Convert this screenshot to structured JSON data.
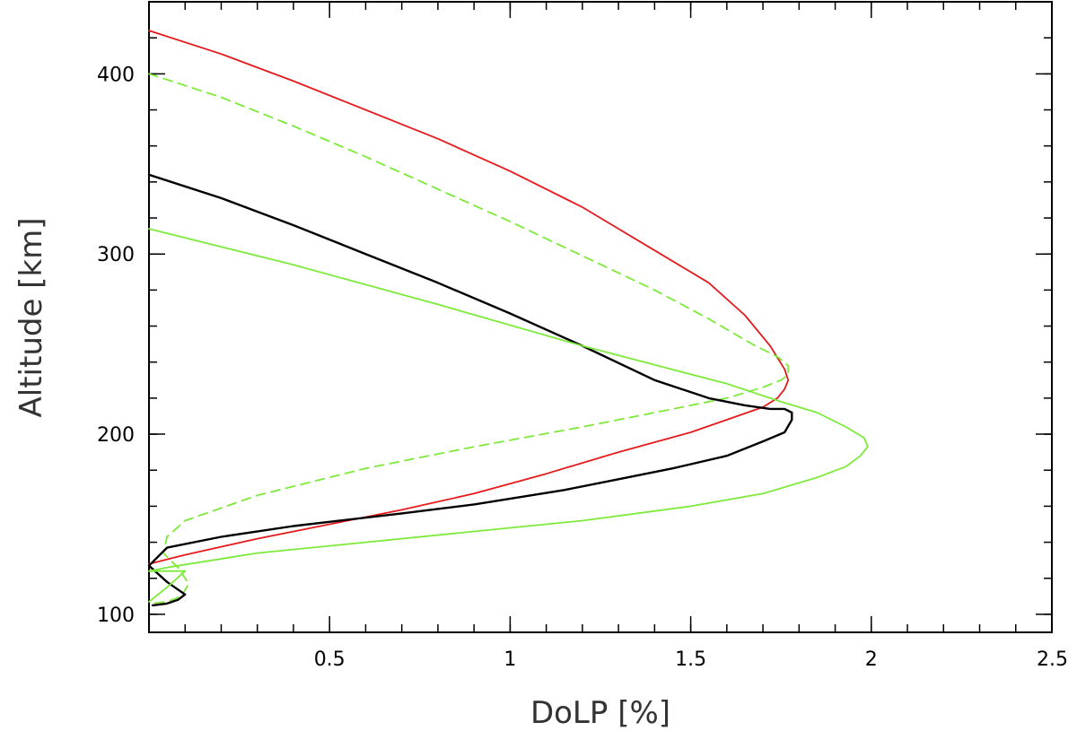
{
  "chart_data": {
    "type": "line",
    "xlabel": "DoLP [%]",
    "ylabel": "Altitude [km]",
    "xlim": [
      0,
      2.5
    ],
    "ylim": [
      90,
      440
    ],
    "x_ticks": [
      {
        "value": 0.5,
        "label": "0.5"
      },
      {
        "value": 1,
        "label": "1"
      },
      {
        "value": 1.5,
        "label": "1.5"
      },
      {
        "value": 2,
        "label": "2"
      },
      {
        "value": 2.5,
        "label": "2.5"
      }
    ],
    "y_ticks": [
      {
        "value": 100,
        "label": "100"
      },
      {
        "value": 200,
        "label": "200"
      },
      {
        "value": 300,
        "label": "300"
      },
      {
        "value": 400,
        "label": "400"
      }
    ],
    "x_minor_step": 0.1,
    "y_minor_step": 20,
    "grid": false,
    "series": [
      {
        "color": "#e41a1c",
        "style": "solid",
        "x": [
          0,
          0.2,
          0.4,
          0.6,
          0.8,
          1.0,
          1.2,
          1.4,
          1.55,
          1.65,
          1.72,
          1.76,
          1.77,
          1.76,
          1.74,
          1.7,
          1.6,
          1.5,
          1.3,
          1.1,
          0.9,
          0.7,
          0.5,
          0.3,
          0.1,
          0
        ],
        "y": [
          424,
          411,
          396,
          380,
          364,
          346,
          326,
          302,
          284,
          266,
          249,
          236,
          230,
          225,
          220,
          215,
          208,
          201,
          190,
          178,
          167,
          158,
          150,
          142,
          133,
          128
        ]
      },
      {
        "color": "#7dea3a",
        "style": "dashed",
        "x": [
          0,
          0.2,
          0.4,
          0.6,
          0.8,
          1.0,
          1.2,
          1.4,
          1.55,
          1.67,
          1.74,
          1.77,
          1.77,
          1.75,
          1.7,
          1.6,
          1.4,
          1.2,
          0.9,
          0.6,
          0.3,
          0.1,
          0.05,
          0.04,
          0.08,
          0.11,
          0.09,
          0.05,
          0
        ],
        "y": [
          400,
          387,
          371,
          354,
          336,
          318,
          299,
          280,
          264,
          250,
          243,
          238,
          233,
          230,
          226,
          220,
          212,
          204,
          193,
          181,
          166,
          152,
          143,
          134,
          126,
          117,
          110,
          107,
          106
        ]
      },
      {
        "color": "#000000",
        "style": "solid",
        "line_width": 2.4,
        "x": [
          0,
          0.2,
          0.4,
          0.6,
          0.8,
          1.0,
          1.2,
          1.4,
          1.55,
          1.65,
          1.72,
          1.76,
          1.78,
          1.78,
          1.76,
          1.7,
          1.6,
          1.45,
          1.3,
          1.15,
          0.9,
          0.7,
          0.4,
          0.2,
          0.05,
          0,
          0.05,
          0.1,
          0.08,
          0.05,
          0.01
        ],
        "y": [
          344,
          331,
          316,
          300,
          284,
          267,
          249,
          230,
          220,
          216,
          214,
          214,
          212,
          208,
          201,
          196,
          188,
          181,
          175,
          169,
          161,
          156,
          149,
          143,
          137,
          127,
          118,
          111,
          108,
          106,
          105
        ]
      },
      {
        "color": "#7dea3a",
        "style": "solid",
        "x": [
          0,
          0.4,
          0.8,
          1.2,
          1.6,
          1.75,
          1.85,
          1.93,
          1.98,
          1.99,
          1.97,
          1.93,
          1.85,
          1.7,
          1.5,
          1.2,
          0.9,
          0.6,
          0.3,
          0.05,
          0,
          0.1,
          0.05,
          0
        ],
        "y": [
          314,
          294,
          272,
          249,
          228,
          218,
          212,
          204,
          198,
          193,
          188,
          182,
          176,
          167,
          160,
          152,
          146,
          140,
          134,
          126,
          124,
          124,
          115,
          107
        ]
      }
    ]
  }
}
